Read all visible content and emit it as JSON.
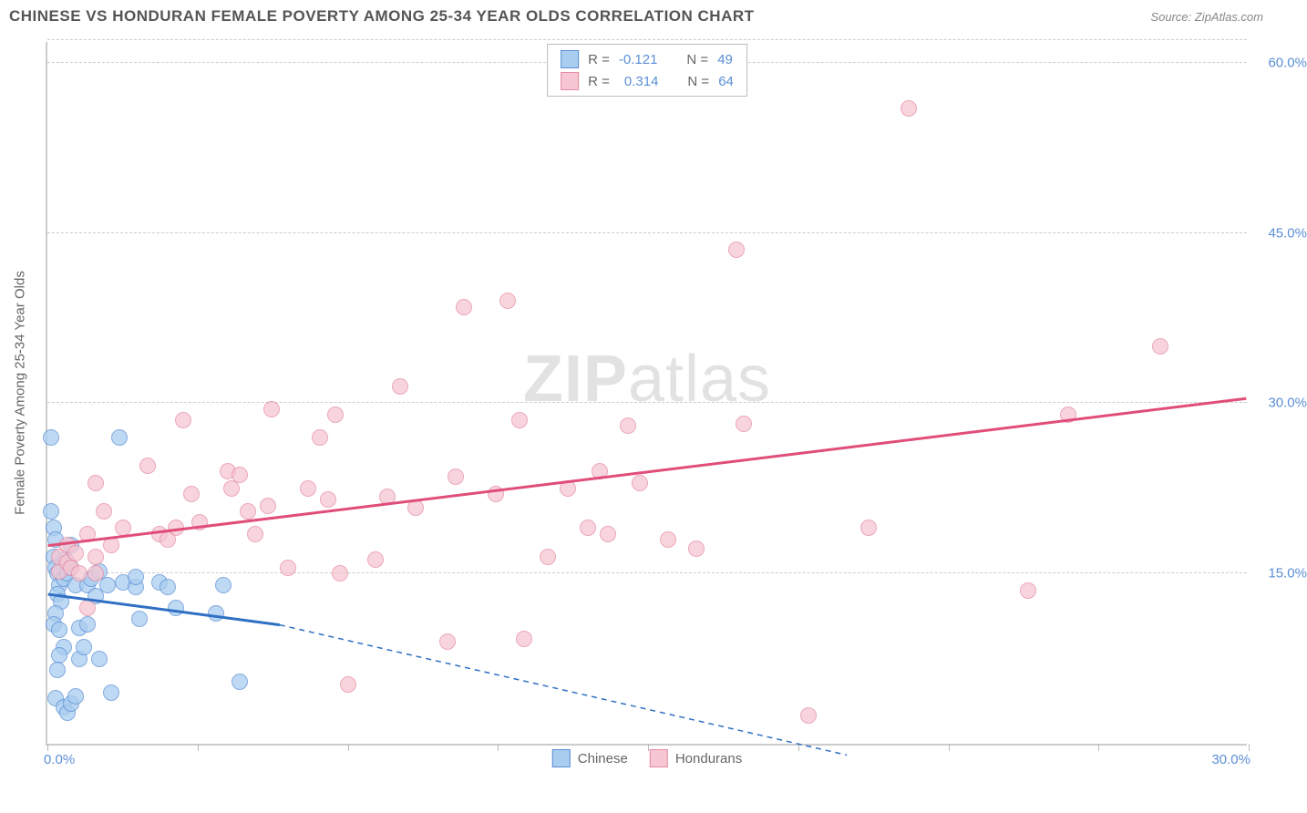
{
  "header": {
    "title": "CHINESE VS HONDURAN FEMALE POVERTY AMONG 25-34 YEAR OLDS CORRELATION CHART",
    "source_label": "Source: ",
    "source_value": "ZipAtlas.com"
  },
  "chart": {
    "type": "scatter",
    "ylabel": "Female Poverty Among 25-34 Year Olds",
    "watermark": "ZIPatlas",
    "xlim": [
      0,
      30
    ],
    "ylim": [
      0,
      62
    ],
    "x_axis": {
      "label_min": "0.0%",
      "label_max": "30.0%",
      "tick_positions": [
        0,
        3.75,
        7.5,
        11.25,
        15,
        18.75,
        22.5,
        26.25,
        30
      ]
    },
    "y_axis": {
      "gridlines": [
        {
          "value": 15,
          "label": "15.0%"
        },
        {
          "value": 30,
          "label": "30.0%"
        },
        {
          "value": 45,
          "label": "45.0%"
        },
        {
          "value": 60,
          "label": "60.0%"
        },
        {
          "value": 62,
          "label": ""
        }
      ]
    },
    "series": [
      {
        "name": "Chinese",
        "fill_color": "#a9cdef",
        "stroke_color": "#5b8fd6",
        "line_color": "#2f6fc4",
        "r_value": "-0.121",
        "n_value": "49",
        "trend": {
          "x1": 0,
          "y1": 13.2,
          "solid_x2": 5.8,
          "solid_y2": 10.5,
          "dash_x2": 20,
          "dash_y2": -1
        },
        "points": [
          {
            "x": 0.1,
            "y": 27
          },
          {
            "x": 0.1,
            "y": 20.5
          },
          {
            "x": 0.15,
            "y": 19
          },
          {
            "x": 0.2,
            "y": 18
          },
          {
            "x": 0.15,
            "y": 16.5
          },
          {
            "x": 0.2,
            "y": 15.5
          },
          {
            "x": 0.25,
            "y": 15
          },
          {
            "x": 0.3,
            "y": 14
          },
          {
            "x": 0.25,
            "y": 13.2
          },
          {
            "x": 0.4,
            "y": 14.5
          },
          {
            "x": 0.5,
            "y": 15
          },
          {
            "x": 0.35,
            "y": 12.5
          },
          {
            "x": 0.2,
            "y": 11.5
          },
          {
            "x": 0.15,
            "y": 10.5
          },
          {
            "x": 0.3,
            "y": 10
          },
          {
            "x": 0.4,
            "y": 8.5
          },
          {
            "x": 0.3,
            "y": 7.8
          },
          {
            "x": 0.25,
            "y": 6.5
          },
          {
            "x": 0.2,
            "y": 4
          },
          {
            "x": 0.4,
            "y": 3.2
          },
          {
            "x": 0.5,
            "y": 2.7
          },
          {
            "x": 0.6,
            "y": 3.5
          },
          {
            "x": 0.7,
            "y": 4.2
          },
          {
            "x": 0.8,
            "y": 7.5
          },
          {
            "x": 0.8,
            "y": 10.2
          },
          {
            "x": 0.9,
            "y": 8.5
          },
          {
            "x": 0.6,
            "y": 15.5
          },
          {
            "x": 0.7,
            "y": 14
          },
          {
            "x": 1.0,
            "y": 14
          },
          {
            "x": 1.0,
            "y": 10.5
          },
          {
            "x": 1.1,
            "y": 14.5
          },
          {
            "x": 1.2,
            "y": 13
          },
          {
            "x": 1.3,
            "y": 15.2
          },
          {
            "x": 1.3,
            "y": 7.5
          },
          {
            "x": 1.5,
            "y": 14
          },
          {
            "x": 1.6,
            "y": 4.5
          },
          {
            "x": 1.8,
            "y": 27
          },
          {
            "x": 1.9,
            "y": 14.2
          },
          {
            "x": 2.2,
            "y": 13.8
          },
          {
            "x": 2.2,
            "y": 14.7
          },
          {
            "x": 2.3,
            "y": 11
          },
          {
            "x": 2.8,
            "y": 14.2
          },
          {
            "x": 3.0,
            "y": 13.8
          },
          {
            "x": 3.2,
            "y": 12
          },
          {
            "x": 4.2,
            "y": 11.5
          },
          {
            "x": 4.4,
            "y": 14
          },
          {
            "x": 4.8,
            "y": 5.5
          },
          {
            "x": 0.6,
            "y": 17.5
          },
          {
            "x": 0.45,
            "y": 16.2
          }
        ]
      },
      {
        "name": "Hondurans",
        "fill_color": "#f6c6d2",
        "stroke_color": "#e58ba5",
        "line_color": "#e04d78",
        "r_value": "0.314",
        "n_value": "64",
        "trend": {
          "x1": 0,
          "y1": 17.5,
          "solid_x2": 30,
          "solid_y2": 30.5,
          "dash_x2": 30,
          "dash_y2": 30.5
        },
        "points": [
          {
            "x": 0.3,
            "y": 15.2
          },
          {
            "x": 0.3,
            "y": 16.5
          },
          {
            "x": 0.5,
            "y": 16
          },
          {
            "x": 0.6,
            "y": 15.5
          },
          {
            "x": 0.5,
            "y": 17.5
          },
          {
            "x": 0.7,
            "y": 16.8
          },
          {
            "x": 0.8,
            "y": 15
          },
          {
            "x": 1.2,
            "y": 16.5
          },
          {
            "x": 1.2,
            "y": 15
          },
          {
            "x": 1.6,
            "y": 17.5
          },
          {
            "x": 1.0,
            "y": 12
          },
          {
            "x": 1.0,
            "y": 18.5
          },
          {
            "x": 1.2,
            "y": 23
          },
          {
            "x": 1.4,
            "y": 20.5
          },
          {
            "x": 1.9,
            "y": 19
          },
          {
            "x": 2.5,
            "y": 24.5
          },
          {
            "x": 2.8,
            "y": 18.5
          },
          {
            "x": 3.2,
            "y": 19
          },
          {
            "x": 3.4,
            "y": 28.5
          },
          {
            "x": 3.6,
            "y": 22
          },
          {
            "x": 3.8,
            "y": 19.5
          },
          {
            "x": 4.5,
            "y": 24
          },
          {
            "x": 4.6,
            "y": 22.5
          },
          {
            "x": 4.8,
            "y": 23.7
          },
          {
            "x": 5.0,
            "y": 20.5
          },
          {
            "x": 5.2,
            "y": 18.5
          },
          {
            "x": 5.5,
            "y": 21
          },
          {
            "x": 5.6,
            "y": 29.5
          },
          {
            "x": 6.0,
            "y": 15.5
          },
          {
            "x": 6.5,
            "y": 22.5
          },
          {
            "x": 6.8,
            "y": 27
          },
          {
            "x": 7.0,
            "y": 21.5
          },
          {
            "x": 7.2,
            "y": 29
          },
          {
            "x": 7.3,
            "y": 15
          },
          {
            "x": 7.5,
            "y": 5.2
          },
          {
            "x": 8.2,
            "y": 16.2
          },
          {
            "x": 8.5,
            "y": 21.8
          },
          {
            "x": 8.8,
            "y": 31.5
          },
          {
            "x": 9.2,
            "y": 20.8
          },
          {
            "x": 10.0,
            "y": 9
          },
          {
            "x": 10.2,
            "y": 23.5
          },
          {
            "x": 10.4,
            "y": 38.5
          },
          {
            "x": 11.2,
            "y": 22
          },
          {
            "x": 11.5,
            "y": 39
          },
          {
            "x": 11.8,
            "y": 28.5
          },
          {
            "x": 11.9,
            "y": 9.2
          },
          {
            "x": 12.5,
            "y": 16.5
          },
          {
            "x": 13.0,
            "y": 22.5
          },
          {
            "x": 13.5,
            "y": 19
          },
          {
            "x": 13.8,
            "y": 24
          },
          {
            "x": 14.0,
            "y": 18.5
          },
          {
            "x": 14.5,
            "y": 28
          },
          {
            "x": 14.8,
            "y": 23
          },
          {
            "x": 15.5,
            "y": 18
          },
          {
            "x": 16.2,
            "y": 17.2
          },
          {
            "x": 17.2,
            "y": 43.5
          },
          {
            "x": 17.4,
            "y": 28.2
          },
          {
            "x": 19.0,
            "y": 2.5
          },
          {
            "x": 20.5,
            "y": 19
          },
          {
            "x": 21.5,
            "y": 56
          },
          {
            "x": 24.5,
            "y": 13.5
          },
          {
            "x": 25.5,
            "y": 29
          },
          {
            "x": 27.8,
            "y": 35
          },
          {
            "x": 3.0,
            "y": 18
          }
        ]
      }
    ],
    "legend_top_label_r": "R =",
    "legend_top_label_n": "N ="
  },
  "colors": {
    "title": "#555555",
    "axis_text": "#5b8fd6",
    "grid": "#cccccc",
    "background": "#ffffff"
  }
}
